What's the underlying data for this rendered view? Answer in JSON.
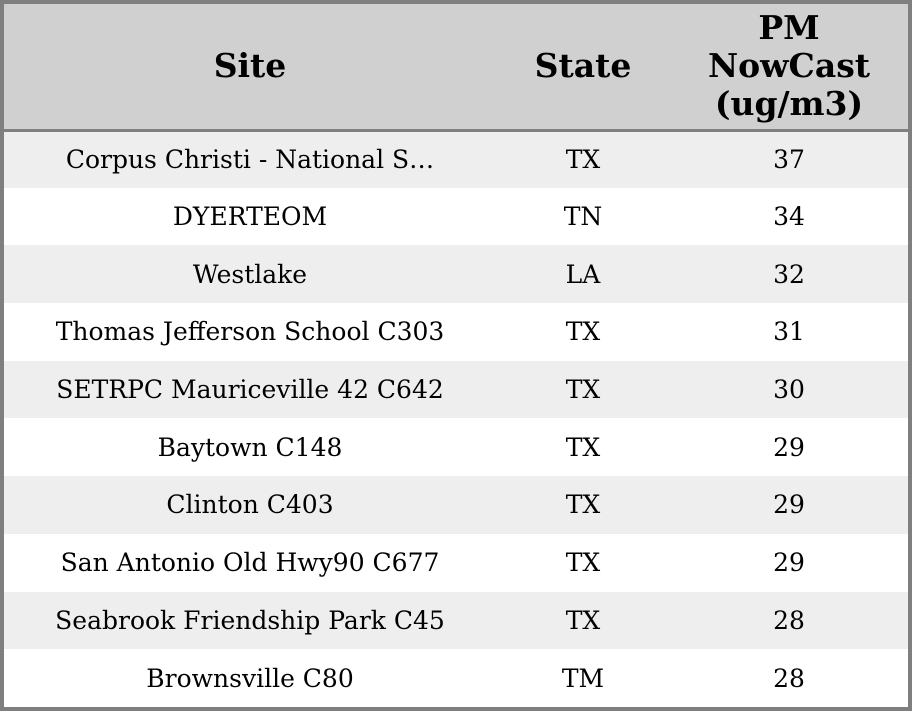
{
  "chart_data": {
    "type": "table",
    "columns": [
      "Site",
      "State",
      "PM NowCast (ug/m3)"
    ],
    "rows": [
      [
        "Corpus Christi - National S…",
        "TX",
        37
      ],
      [
        "DYERTEOM",
        "TN",
        34
      ],
      [
        "Westlake",
        "LA",
        32
      ],
      [
        "Thomas Jefferson School C303",
        "TX",
        31
      ],
      [
        "SETRPC Mauriceville 42 C642",
        "TX",
        30
      ],
      [
        "Baytown C148",
        "TX",
        29
      ],
      [
        "Clinton C403",
        "TX",
        29
      ],
      [
        "San Antonio Old Hwy90 C677",
        "TX",
        29
      ],
      [
        "Seabrook Friendship Park C45",
        "TX",
        28
      ],
      [
        "Brownsville C80",
        "TM",
        28
      ]
    ],
    "layout": {
      "alternating_rows": true,
      "first_data_row_shaded": true,
      "header_lines_in_pm_column": [
        "PM",
        "NowCast",
        "(ug/m3)"
      ]
    },
    "colors": {
      "header_bg": "#d0d0d0",
      "row_alt_bg": "#eeeeee",
      "row_bg": "#ffffff",
      "frame_border": "#7f7f7f",
      "text": "#000000"
    }
  }
}
